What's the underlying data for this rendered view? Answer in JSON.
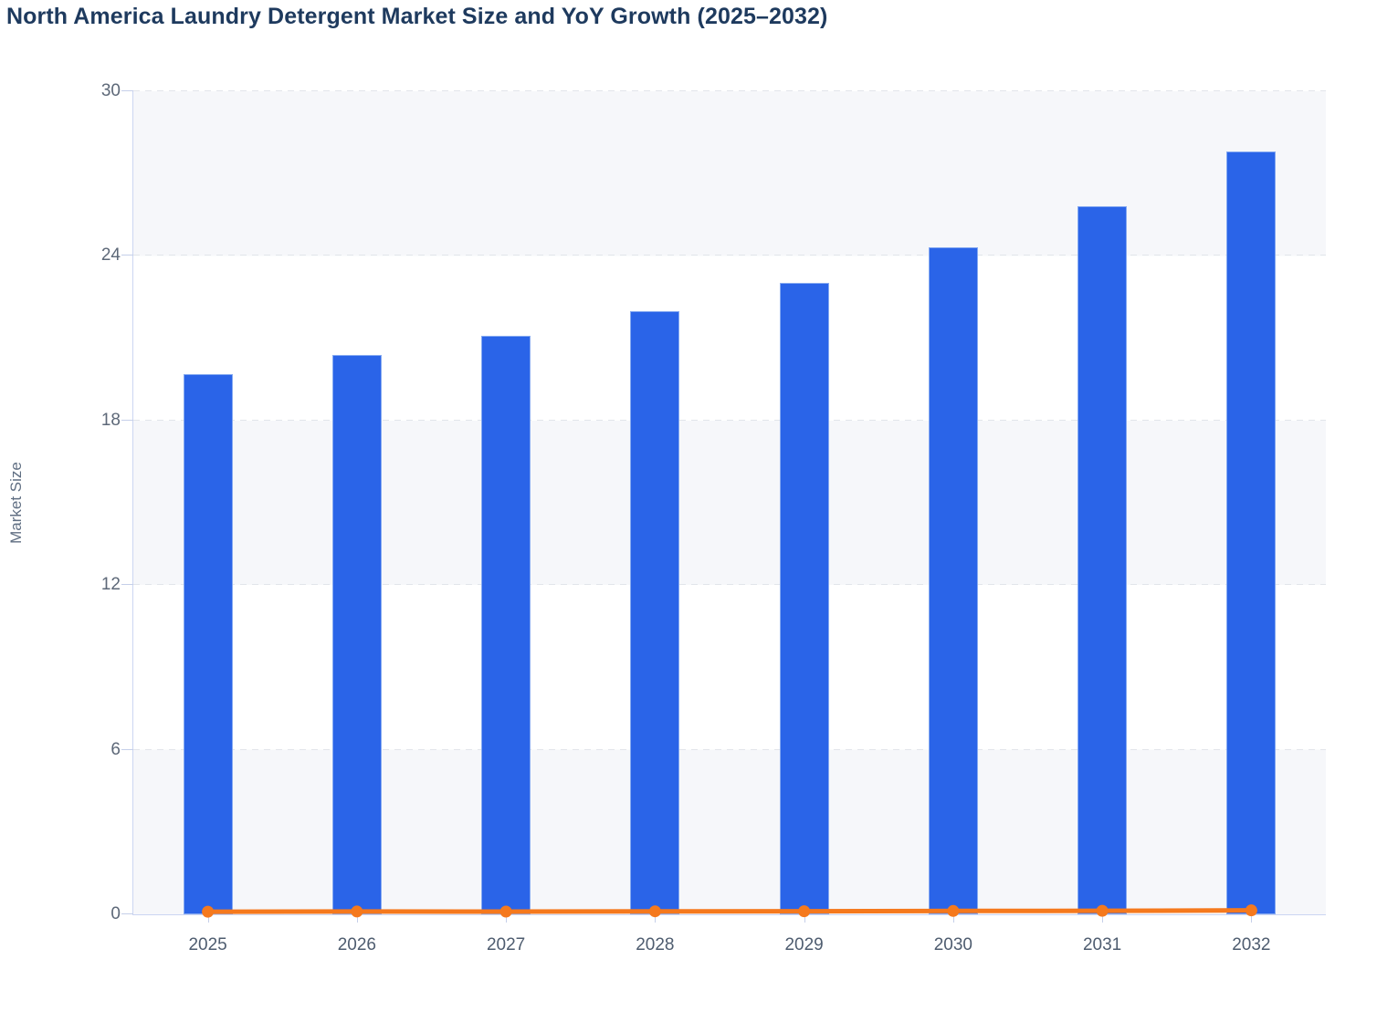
{
  "title": "North America Laundry Detergent Market Size and YoY Growth (2025–2032)",
  "chart_data": {
    "type": "bar",
    "title": "North America Laundry Detergent Market Size and YoY Growth (2025–2032)",
    "categories": [
      "2025",
      "2026",
      "2027",
      "2028",
      "2029",
      "2030",
      "2031",
      "2032"
    ],
    "series": [
      {
        "name": "Market Size",
        "type": "bar",
        "color": "#2a64e8",
        "values": [
          19.7,
          20.4,
          21.1,
          22.0,
          23.0,
          24.3,
          25.8,
          27.8
        ]
      },
      {
        "name": "YoY Growth",
        "type": "line",
        "color": "#f5791d",
        "values": [
          0.03,
          0.036,
          0.034,
          0.043,
          0.045,
          0.057,
          0.062,
          0.077
        ]
      }
    ],
    "xlabel": "",
    "ylabel": "Market Size",
    "ylim": [
      0,
      30
    ],
    "yticks": [
      0,
      6,
      12,
      18,
      24,
      30
    ],
    "grid": "horizontal-dashed",
    "legend_position": "none",
    "plot_band_colors": [
      "#f6f7fa",
      "#ffffff"
    ]
  }
}
